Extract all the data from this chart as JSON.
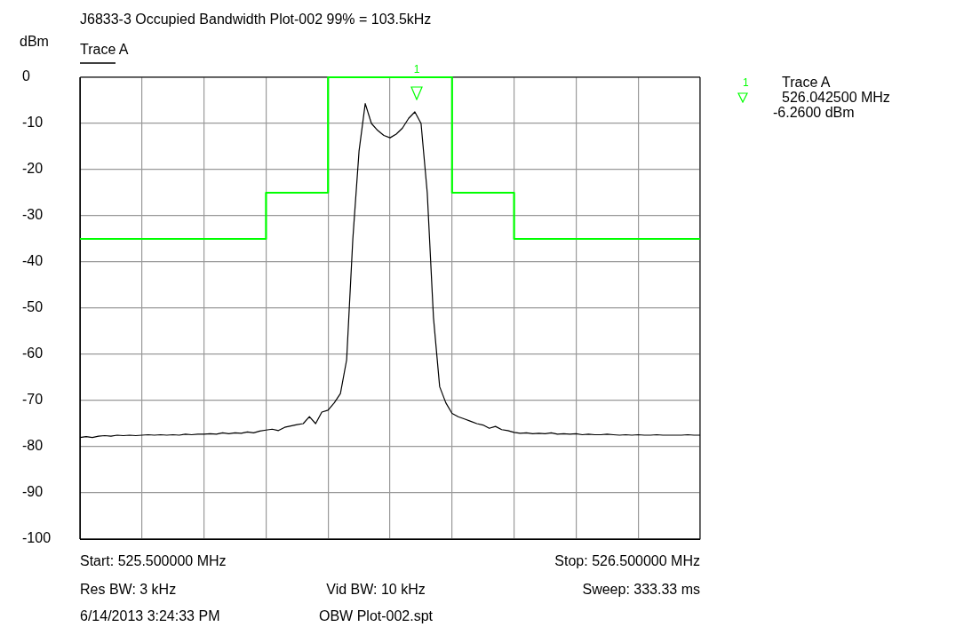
{
  "chart_data": {
    "type": "line",
    "title": "J6833-3 Occupied Bandwidth Plot-002 99% = 103.5kHz",
    "ylabel": "dBm",
    "categories": [
      null,
      null,
      null,
      null,
      null,
      null,
      null,
      null,
      null,
      null,
      null,
      null,
      null,
      null,
      null,
      null,
      null,
      null,
      null,
      null,
      null,
      null,
      null,
      null,
      null,
      null,
      null,
      null,
      null,
      null,
      null,
      null,
      null,
      null,
      null,
      null,
      null,
      null,
      null,
      null,
      null,
      null,
      null,
      null,
      null,
      null,
      null,
      null,
      null,
      null,
      null,
      null,
      null,
      null,
      null,
      null,
      null,
      null,
      null,
      null,
      null,
      null,
      null,
      null,
      null,
      null,
      null,
      null,
      null,
      null,
      null,
      null,
      null,
      null,
      null,
      null,
      null,
      null,
      null,
      null,
      null,
      null,
      null,
      null,
      null,
      null,
      null,
      null,
      null,
      null,
      null,
      null,
      null,
      null,
      null,
      null,
      null,
      null,
      null,
      null,
      null
    ],
    "ylim": [
      -100,
      0
    ],
    "yticks": [
      0,
      -10,
      -20,
      -30,
      -40,
      -50,
      -60,
      -70,
      -80,
      -90,
      -100
    ],
    "grid": true,
    "legend": "top left",
    "series": [
      {
        "name": "Trace A",
        "color": "#000000",
        "values": [
          -78,
          -77.8,
          -78,
          -77.7,
          -77.6,
          -77.7,
          -77.5,
          -77.6,
          -77.5,
          -77.6,
          -77.5,
          -77.4,
          -77.5,
          -77.4,
          -77.5,
          -77.4,
          -77.5,
          -77.3,
          -77.4,
          -77.3,
          -77.3,
          -77.2,
          -77.3,
          -77,
          -77.2,
          -77,
          -77.1,
          -76.8,
          -77,
          -76.6,
          -76.4,
          -76.2,
          -76.5,
          -75.8,
          -75.5,
          -75.2,
          -75,
          -73.5,
          -75,
          -72.5,
          -72.1,
          -70.5,
          -68.5,
          -61.2,
          -35,
          -16,
          -5.7,
          -10,
          -11.5,
          -12.6,
          -13.1,
          -12.3,
          -11,
          -8.9,
          -7.5,
          -10,
          -25,
          -52,
          -67,
          -70.5,
          -72.8,
          -73.5,
          -74,
          -74.5,
          -75,
          -75.3,
          -76,
          -75.6,
          -76.3,
          -76.5,
          -76.9,
          -77.1,
          -77,
          -77.2,
          -77.1,
          -77.2,
          -77,
          -77.3,
          -77.2,
          -77.3,
          -77.2,
          -77.4,
          -77.3,
          -77.4,
          -77.4,
          -77.3,
          -77.4,
          -77.5,
          -77.4,
          -77.5,
          -77.4,
          -77.5,
          -77.5,
          -77.4,
          -77.5,
          -77.5,
          -77.5,
          -77.5,
          -77.4,
          -77.5,
          -77.5
        ]
      },
      {
        "type": "step",
        "color": "#00ff00",
        "values": [
          -35,
          -35,
          -35,
          -35,
          -35,
          -35,
          -35,
          -35,
          -35,
          -35,
          -35,
          -35,
          -35,
          -35,
          -35,
          -35,
          -35,
          -35,
          -35,
          -35,
          -35,
          -35,
          -35,
          -35,
          -35,
          -35,
          -35,
          -35,
          -35,
          -35,
          -25,
          -25,
          -25,
          -25,
          -25,
          -25,
          -25,
          -25,
          -25,
          -25,
          0,
          0,
          0,
          0,
          0,
          0,
          0,
          0,
          0,
          0,
          0,
          0,
          0,
          0,
          0,
          0,
          0,
          0,
          0,
          0,
          -25,
          -25,
          -25,
          -25,
          -25,
          -25,
          -25,
          -25,
          -25,
          -25,
          -35,
          -35,
          -35,
          -35,
          -35,
          -35,
          -35,
          -35,
          -35,
          -35,
          -35,
          -35,
          -35,
          -35,
          -35,
          -35,
          -35,
          -35,
          -35,
          -35,
          -35,
          -35,
          -35,
          -35,
          -35,
          -35,
          -35,
          -35,
          -35,
          -35,
          -35
        ]
      }
    ],
    "annotations": [
      "1",
      "1",
      "Trace A",
      "526.042500 MHz",
      "-6.2600 dBm",
      "Start: 525.500000 MHz",
      "Stop: 526.500000 MHz",
      "Res BW: 3 kHz",
      "Vid BW: 10 kHz",
      "Sweep: 333.33 ms",
      "6/14/2013 3:24:33 PM",
      "OBW Plot-002.spt"
    ]
  }
}
